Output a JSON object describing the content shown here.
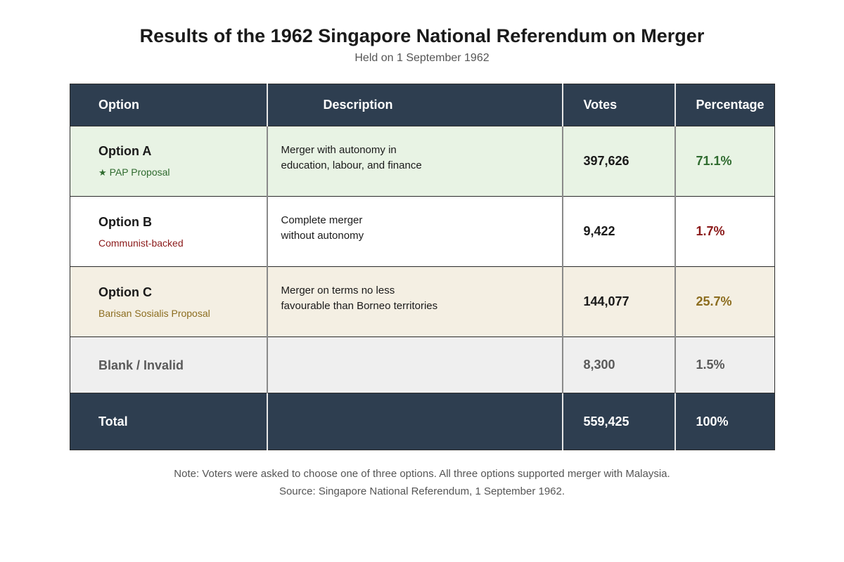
{
  "title": "Results of the 1962 Singapore National Referendum on Merger",
  "subtitle": "Held on 1 September 1962",
  "table": {
    "headers": {
      "option": "Option",
      "description": "Description",
      "votes": "Votes",
      "percentage": "Percentage"
    },
    "rows": [
      {
        "option": "Option A",
        "tag_icon": "star-icon",
        "tag": "PAP Proposal",
        "description_line1": "Merger with autonomy in",
        "description_line2": "education, labour, and finance",
        "votes": "397,626",
        "percentage": "71.1%",
        "accent": "#2f6b2f",
        "background": "#e8f3e4"
      },
      {
        "option": "Option B",
        "tag": "Communist-backed",
        "description_line1": "Complete merger",
        "description_line2": "without autonomy",
        "votes": "9,422",
        "percentage": "1.7%",
        "accent": "#8b1a1a",
        "background": "#ffffff"
      },
      {
        "option": "Option C",
        "tag": "Barisan Sosialis Proposal",
        "description_line1": "Merger on terms no less",
        "description_line2": "favourable than Borneo territories",
        "votes": "144,077",
        "percentage": "25.7%",
        "accent": "#8c6d1f",
        "background": "#f4efe3"
      },
      {
        "option": "Blank / Invalid",
        "description_line1": "",
        "description_line2": "",
        "votes": "8,300",
        "percentage": "1.5%",
        "background": "#efefef"
      }
    ],
    "total": {
      "option": "Total",
      "votes": "559,425",
      "percentage": "100%"
    },
    "header_color": "#2e3e50"
  },
  "note": "Note: Voters were asked to choose one of three options. All three options supported merger with Malaysia.",
  "source": "Source: Singapore National Referendum, 1 September 1962."
}
